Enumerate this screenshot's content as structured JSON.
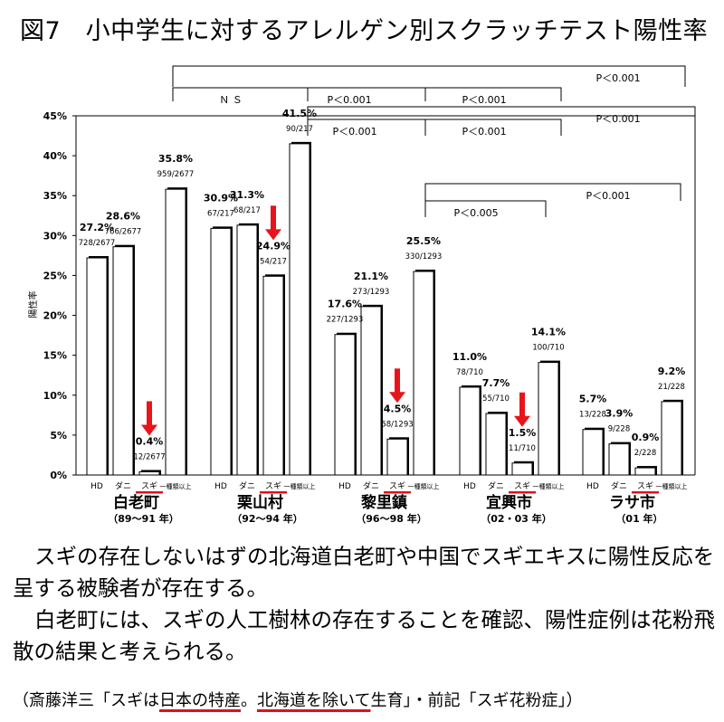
{
  "title": "図7　小中学生に対するアレルゲン別スクラッチテスト陽性率",
  "chart_data": {
    "type": "bar",
    "ylabel": "陽性率",
    "ylim": [
      0,
      45
    ],
    "yticks": [
      "0%",
      "5%",
      "10%",
      "15%",
      "20%",
      "25%",
      "30%",
      "35%",
      "40%",
      "45%"
    ],
    "categories": [
      "HD",
      "ダニ",
      "スギ",
      "一種類以上"
    ],
    "groups": [
      {
        "name": "白老町",
        "period": "（89～91 年）",
        "values": [
          27.2,
          28.6,
          0.4,
          35.8
        ],
        "pct_labels": [
          "27.2%",
          "28.6%",
          "0.4%",
          "35.8%"
        ],
        "counts": [
          "728/2677",
          "766/2677",
          "12/2677",
          "959/2677"
        ]
      },
      {
        "name": "栗山村",
        "period": "（92～94 年）",
        "values": [
          30.9,
          31.3,
          24.9,
          41.5
        ],
        "pct_labels": [
          "30.9%",
          "31.3%",
          "24.9%",
          "41.5%"
        ],
        "counts": [
          "67/217",
          "68/217",
          "54/217",
          "90/217"
        ]
      },
      {
        "name": "黎里鎮",
        "period": "（96～98 年）",
        "values": [
          17.6,
          21.1,
          4.5,
          25.5
        ],
        "pct_labels": [
          "17.6%",
          "21.1%",
          "4.5%",
          "25.5%"
        ],
        "counts": [
          "227/1293",
          "273/1293",
          "58/1293",
          "330/1293"
        ]
      },
      {
        "name": "宜興市",
        "period": "（02・03 年）",
        "values": [
          11.0,
          7.7,
          1.5,
          14.1
        ],
        "pct_labels": [
          "11.0%",
          "7.7%",
          "1.5%",
          "14.1%"
        ],
        "counts": [
          "78/710",
          "55/710",
          "11/710",
          "100/710"
        ]
      },
      {
        "name": "ラサ市",
        "period": "（01 年）",
        "values": [
          5.7,
          3.9,
          0.9,
          9.2
        ],
        "pct_labels": [
          "5.7%",
          "3.9%",
          "0.9%",
          "9.2%"
        ],
        "counts": [
          "13/228",
          "9/228",
          "2/228",
          "21/228"
        ]
      }
    ],
    "significance": [
      "P＜0.001",
      "Ｎ Ｓ",
      "P＜0.001",
      "P＜0.001",
      "P＜0.001",
      "P＜0.001",
      "P＜0.001",
      "P＜0.001",
      "P＜0.005"
    ],
    "arrow_color": "#e8141c",
    "underline_color": "#e0101a",
    "bar_fill": "#ffffff",
    "bar_shadow": "#000000"
  },
  "paragraph": [
    "スギの存在しないはずの北海道白老町や中国でスギエキスに陽性反応を呈する被験者が存在する。",
    "白老町には、スギの人工樹林の存在することを確認、陽性症例は花粉飛散の結果と考えられる。"
  ],
  "source": {
    "p1": "（斎藤洋三「スギは",
    "u1": "日本の特産",
    "p2": "。",
    "u2": "北海道を除いて",
    "p3": "生育」・前記「スギ花粉症」）"
  }
}
